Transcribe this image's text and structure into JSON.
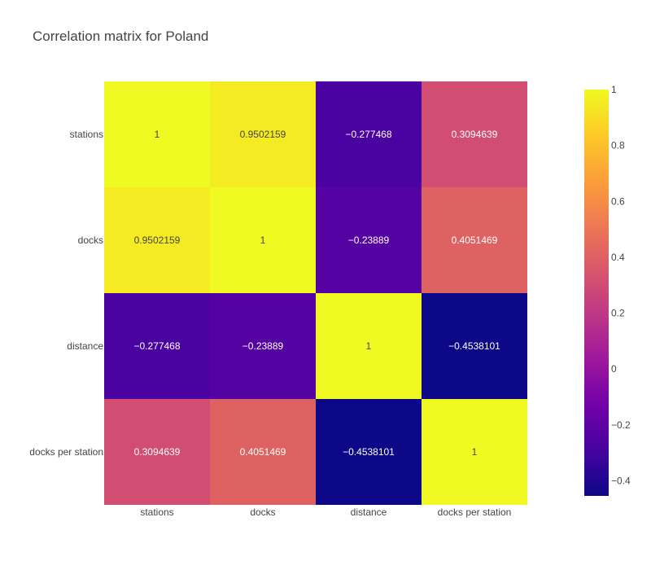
{
  "chart_data": {
    "type": "heatmap",
    "title": "Correlation matrix for Poland",
    "x": [
      "stations",
      "docks",
      "distance",
      "docks per station"
    ],
    "y": [
      "stations",
      "docks",
      "distance",
      "docks per station"
    ],
    "z": [
      [
        1,
        0.9502159,
        -0.277468,
        0.3094639
      ],
      [
        0.9502159,
        1,
        -0.23889,
        0.4051469
      ],
      [
        -0.277468,
        -0.23889,
        1,
        -0.4538101
      ],
      [
        0.3094639,
        0.4051469,
        -0.4538101,
        1
      ]
    ],
    "text": [
      [
        "1",
        "0.9502159",
        "−0.277468",
        "0.3094639"
      ],
      [
        "0.9502159",
        "1",
        "−0.23889",
        "0.4051469"
      ],
      [
        "−0.277468",
        "−0.23889",
        "1",
        "−0.4538101"
      ],
      [
        "0.3094639",
        "0.4051469",
        "−0.4538101",
        "1"
      ]
    ],
    "zmin": -0.4538101,
    "zmax": 1,
    "colorscale": "plasma",
    "colorbar": {
      "tickvals": [
        1,
        0.8,
        0.6,
        0.4,
        0.2,
        0,
        -0.2,
        -0.4
      ],
      "ticktext": [
        "1",
        "0.8",
        "0.6",
        "0.4",
        "0.2",
        "0",
        "−0.2",
        "−0.4"
      ]
    },
    "colors": {
      "title_text": "#444444",
      "tick_text": "#444444",
      "light_cell_text": "#444444",
      "dark_cell_text": "#ffffff"
    }
  }
}
